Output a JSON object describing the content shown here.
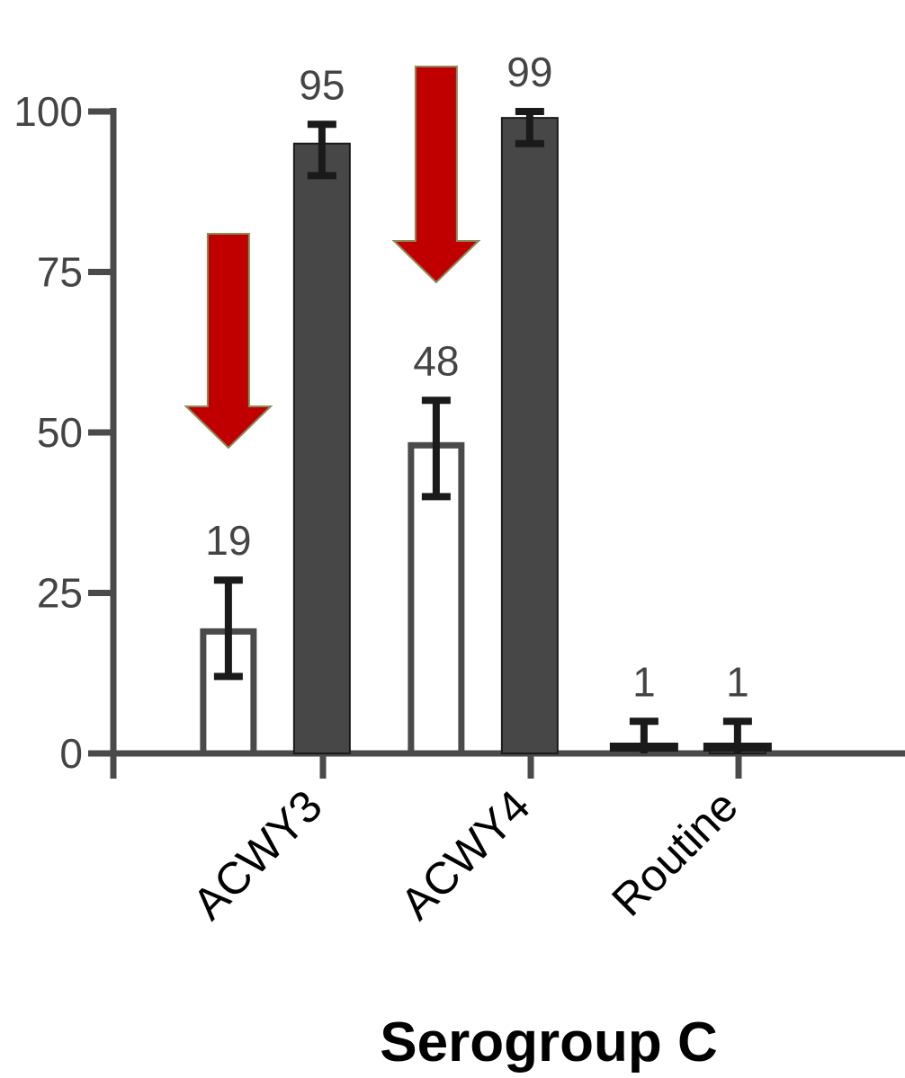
{
  "chart_data": {
    "type": "bar",
    "title": "Serogroup C",
    "xlabel": "",
    "ylabel": "",
    "ylim": [
      0,
      100
    ],
    "yticks": [
      0,
      25,
      50,
      75,
      100
    ],
    "grid": false,
    "legend": "none",
    "categories": [
      "ACWY3",
      "ACWY4",
      "Routine"
    ],
    "series": [
      {
        "style": "open",
        "values": [
          19,
          48,
          1
        ],
        "value_labels": [
          "19",
          "48",
          "1"
        ],
        "error_low": [
          12,
          40,
          0
        ],
        "error_high": [
          27,
          55,
          5
        ]
      },
      {
        "style": "filled",
        "values": [
          95,
          99,
          1
        ],
        "value_labels": [
          "95",
          "99",
          "1"
        ],
        "error_low": [
          90,
          95,
          0
        ],
        "error_high": [
          98,
          100,
          5
        ]
      }
    ],
    "annotations": [
      {
        "type": "down-arrow",
        "category": "ACWY3",
        "series": 0
      },
      {
        "type": "down-arrow",
        "category": "ACWY4",
        "series": 0
      }
    ],
    "colors": {
      "axis": "#4a4a4a",
      "open_bar_stroke": "#4a4a4a",
      "open_bar_fill": "#ffffff",
      "filled_bar": "#474747",
      "error_bar": "#1a1a1a",
      "arrow_fill": "#c00000",
      "arrow_stroke": "#8a8a5a"
    }
  }
}
